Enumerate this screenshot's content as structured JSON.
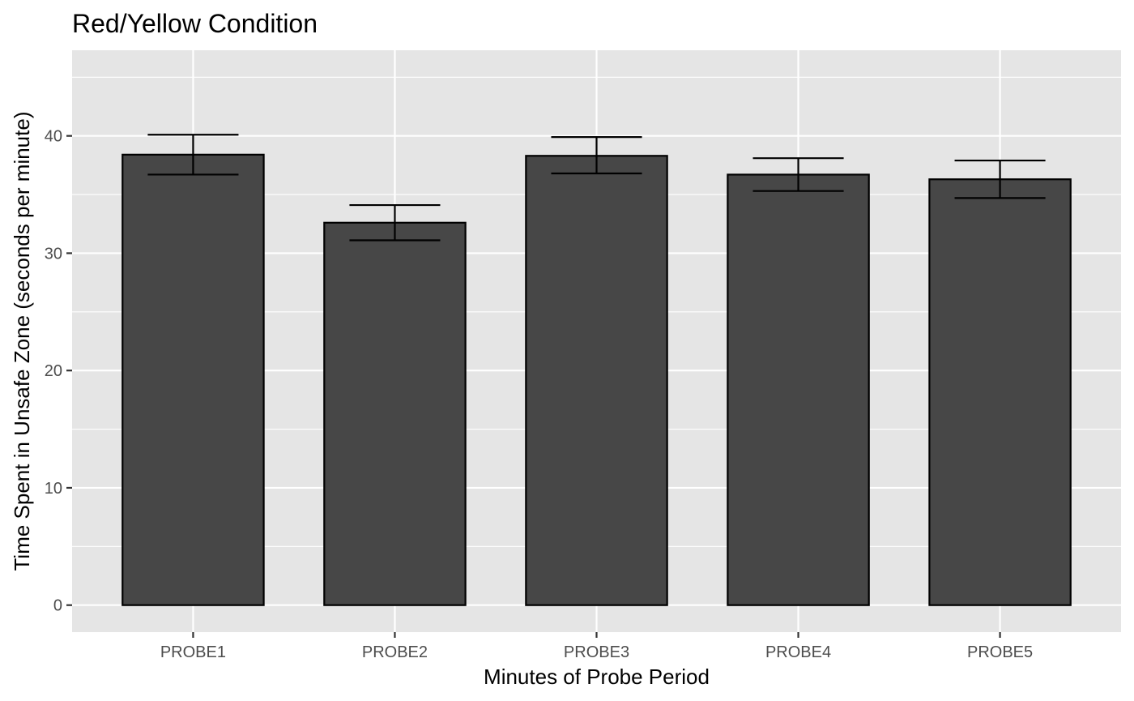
{
  "chart_data": {
    "type": "bar",
    "title": "Red/Yellow Condition",
    "xlabel": "Minutes of Probe Period",
    "ylabel": "Time Spent in Unsafe Zone (seconds per minute)",
    "categories": [
      "PROBE1",
      "PROBE2",
      "PROBE3",
      "PROBE4",
      "PROBE5"
    ],
    "values": [
      38.4,
      32.6,
      38.3,
      36.7,
      36.3
    ],
    "error_low": [
      36.7,
      31.1,
      36.8,
      35.3,
      34.7
    ],
    "error_high": [
      40.1,
      34.1,
      39.9,
      38.1,
      37.9
    ],
    "ylim": [
      -2.3,
      47.3
    ],
    "yticks": [
      0,
      10,
      20,
      30,
      40
    ],
    "ytick_labels": [
      "0",
      "10",
      "20",
      "30",
      "40"
    ],
    "grid": true,
    "colors": {
      "panel_background": "#e5e5e5",
      "grid": "#ffffff",
      "bar_fill": "#474747",
      "bar_outline": "#000000",
      "error_bar": "#000000",
      "tick_mark": "#333333"
    }
  }
}
